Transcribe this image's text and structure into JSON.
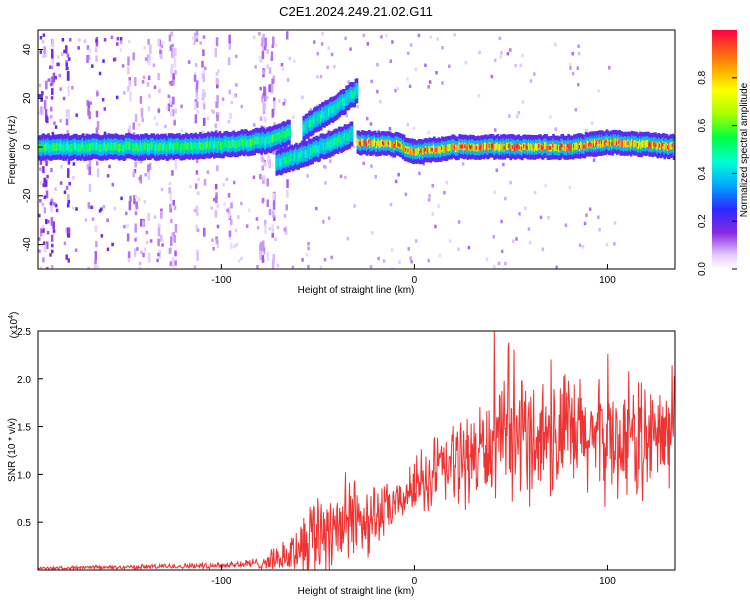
{
  "title": "C2E1.2024.249.21.02.G11",
  "chart_data": [
    {
      "type": "heatmap",
      "xlabel": "Height of straight line (km)",
      "ylabel": "Frequency (Hz)",
      "xlim": [
        -195,
        135
      ],
      "ylim": [
        -50,
        48
      ],
      "xticks": [
        "-100",
        "0",
        "100"
      ],
      "xtick_values": [
        -100,
        0,
        100
      ],
      "yticks": [
        "-40",
        "-20",
        "0",
        "20",
        "40"
      ],
      "ytick_values": [
        -40,
        -20,
        0,
        20,
        40
      ],
      "colorbar": {
        "label": "Normalized spectral amplitude",
        "range": [
          0,
          1
        ],
        "ticks": [
          "0.0",
          "0.2",
          "0.4",
          "0.6",
          "0.8"
        ],
        "tick_values": [
          0.0,
          0.2,
          0.4,
          0.6,
          0.8
        ]
      },
      "features": [
        {
          "name": "main band",
          "x": [
            -195,
            -175,
            -150,
            -125,
            -100,
            -85,
            -75,
            -65
          ],
          "freq": [
            0,
            0,
            0,
            0,
            1,
            2,
            3,
            6
          ]
        },
        {
          "name": "rising branch",
          "x": [
            -58,
            -50,
            -42,
            -35,
            -30
          ],
          "freq": [
            8,
            12,
            16,
            20,
            23
          ]
        },
        {
          "name": "lower branch",
          "x": [
            -72,
            -62,
            -52,
            -42,
            -33
          ],
          "freq": [
            -7,
            -4,
            -1,
            2,
            5
          ]
        },
        {
          "name": "upper band",
          "x": [
            -30,
            -10,
            0,
            20,
            40,
            60,
            80,
            100,
            120,
            135
          ],
          "freq": [
            2,
            1,
            -2,
            0,
            0,
            0,
            0,
            2,
            1,
            0
          ]
        }
      ]
    },
    {
      "type": "line",
      "xlabel": "Height of straight line (km)",
      "ylabel": "SNR (10 * v/v)",
      "scale_label": "(x10",
      "scale_exponent": "4",
      "xlim": [
        -195,
        135
      ],
      "ylim": [
        0,
        2.5
      ],
      "xticks": [
        "-100",
        "0",
        "100"
      ],
      "xtick_values": [
        -100,
        0,
        100
      ],
      "yticks": [
        "0.5",
        "1.0",
        "1.5",
        "2.0",
        "2.5"
      ],
      "ytick_values": [
        0.5,
        1.0,
        1.5,
        2.0,
        2.5
      ],
      "color": "#ee3333",
      "envelope": {
        "x": [
          -195,
          -150,
          -100,
          -80,
          -65,
          -55,
          -45,
          -35,
          -25,
          -15,
          -5,
          0,
          10,
          25,
          40,
          60,
          80,
          100,
          120,
          135
        ],
        "mean": [
          0.02,
          0.03,
          0.05,
          0.07,
          0.15,
          0.35,
          0.45,
          0.5,
          0.55,
          0.6,
          0.75,
          0.9,
          1.0,
          1.15,
          1.3,
          1.4,
          1.4,
          1.35,
          1.35,
          1.4
        ],
        "spread": [
          0.01,
          0.02,
          0.03,
          0.05,
          0.15,
          0.35,
          0.45,
          0.4,
          0.35,
          0.25,
          0.15,
          0.25,
          0.35,
          0.4,
          0.45,
          0.55,
          0.55,
          0.5,
          0.5,
          0.45
        ]
      }
    }
  ]
}
